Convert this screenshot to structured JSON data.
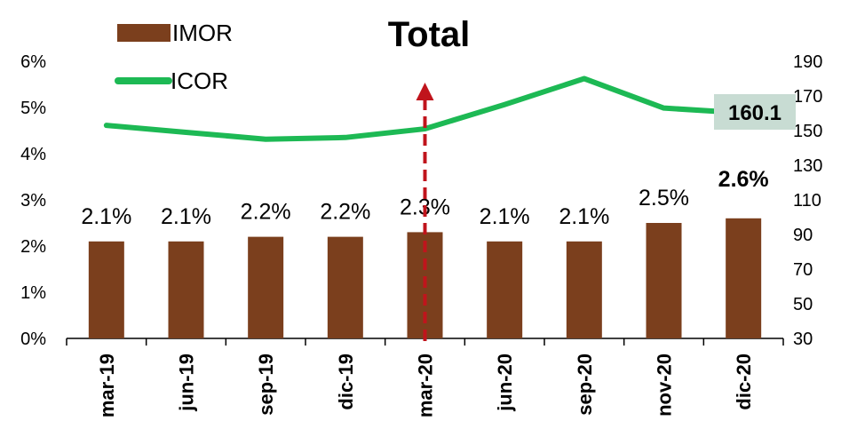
{
  "chart_data": {
    "type": "bar",
    "title": "Total",
    "categories": [
      "mar-19",
      "jun-19",
      "sep-19",
      "dic-19",
      "mar-20",
      "jun-20",
      "sep-20",
      "nov-20",
      "dic-20"
    ],
    "series": [
      {
        "name": "IMOR",
        "type": "bar",
        "axis": "left",
        "values": [
          2.1,
          2.1,
          2.2,
          2.2,
          2.3,
          2.1,
          2.1,
          2.5,
          2.6
        ],
        "labels": [
          "2.1%",
          "2.1%",
          "2.2%",
          "2.2%",
          "2.3%",
          "2.1%",
          "2.1%",
          "2.5%",
          "2.6%"
        ],
        "color": "#7b3f1d"
      },
      {
        "name": "ICOR",
        "type": "line",
        "axis": "right",
        "values": [
          153,
          149,
          145,
          146,
          151,
          165,
          180,
          163,
          160.1
        ],
        "color": "#1db954"
      }
    ],
    "left_axis": {
      "ylim": [
        0,
        6
      ],
      "ticks": [
        "0%",
        "1%",
        "2%",
        "3%",
        "4%",
        "5%",
        "6%"
      ]
    },
    "right_axis": {
      "ylim": [
        30,
        190
      ],
      "ticks": [
        "30",
        "50",
        "70",
        "90",
        "110",
        "130",
        "150",
        "170",
        "190"
      ]
    },
    "callout": {
      "text": "160.1",
      "background": "#c8dcd3"
    },
    "marker": {
      "category": "mar-20",
      "style": "dashed-arrow",
      "color": "#c0141c"
    },
    "legend": {
      "placement": "top-left"
    },
    "grid": false
  }
}
